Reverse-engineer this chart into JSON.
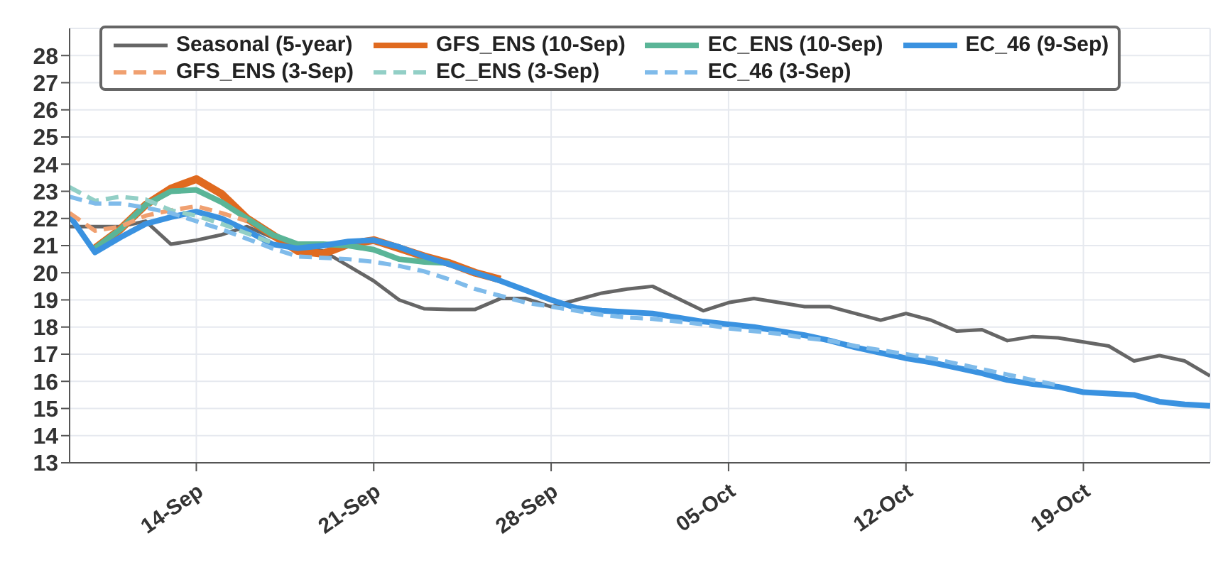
{
  "chart_data": {
    "type": "line",
    "x": [
      "--09-09",
      "--09-10",
      "--09-11",
      "--09-12",
      "--09-13",
      "--09-14",
      "--09-15",
      "--09-16",
      "--09-17",
      "--09-18",
      "--09-19",
      "--09-20",
      "--09-21",
      "--09-22",
      "--09-23",
      "--09-24",
      "--09-25",
      "--09-26",
      "--09-27",
      "--09-28",
      "--09-29",
      "--09-30",
      "--10-01",
      "--10-02",
      "--10-03",
      "--10-04",
      "--10-05",
      "--10-06",
      "--10-07",
      "--10-08",
      "--10-09",
      "--10-10",
      "--10-11",
      "--10-12",
      "--10-13",
      "--10-14",
      "--10-15",
      "--10-16",
      "--10-17",
      "--10-18",
      "--10-19",
      "--10-20",
      "--10-21",
      "--10-22",
      "--10-23",
      "--10-24"
    ],
    "series": [
      {
        "name": "Seasonal (5-year)",
        "color": "#666666",
        "line_style": "solid",
        "values": [
          21.7,
          21.7,
          21.7,
          21.9,
          21.05,
          21.2,
          21.4,
          21.7,
          21.3,
          21.0,
          20.8,
          20.25,
          19.7,
          19.0,
          18.67,
          18.65,
          18.65,
          19.05,
          19.05,
          18.75,
          19.0,
          19.25,
          19.4,
          19.5,
          19.05,
          18.6,
          18.9,
          19.05,
          18.9,
          18.75,
          18.75,
          18.5,
          18.25,
          18.5,
          18.25,
          17.85,
          17.9,
          17.5,
          17.65,
          17.6,
          17.45,
          17.3,
          16.75,
          16.95,
          16.75,
          16.2
        ]
      },
      {
        "name": "GFS_ENS (10-Sep)",
        "color": "#e06a1f",
        "line_style": "solid",
        "x": [
          "--09-10",
          "--09-11",
          "--09-12",
          "--09-13",
          "--09-14",
          "--09-15",
          "--09-16",
          "--09-17",
          "--09-18",
          "--09-19",
          "--09-20",
          "--09-21",
          "--09-22",
          "--09-23",
          "--09-24",
          "--09-25",
          "--09-26"
        ],
        "values": [
          20.9,
          21.6,
          22.5,
          23.1,
          23.45,
          22.9,
          22.0,
          21.4,
          20.8,
          20.7,
          21.05,
          21.2,
          20.9,
          20.6,
          20.35,
          20.0,
          19.75
        ]
      },
      {
        "name": "EC_ENS (10-Sep)",
        "color": "#5ab597",
        "line_style": "solid",
        "x": [
          "--09-10",
          "--09-11",
          "--09-12",
          "--09-13",
          "--09-14",
          "--09-15",
          "--09-16",
          "--09-17",
          "--09-18",
          "--09-19",
          "--09-20",
          "--09-21",
          "--09-22",
          "--09-23",
          "--09-24"
        ],
        "values": [
          20.9,
          21.6,
          22.5,
          23.0,
          23.05,
          22.6,
          22.0,
          21.4,
          21.05,
          21.05,
          21.0,
          20.85,
          20.5,
          20.4,
          20.35
        ]
      },
      {
        "name": "EC_46 (9-Sep)",
        "color": "#3a92e0",
        "line_style": "solid",
        "values": [
          22.1,
          20.75,
          21.3,
          21.8,
          22.05,
          22.25,
          22.0,
          21.55,
          21.05,
          20.9,
          21.0,
          21.15,
          21.2,
          20.95,
          20.6,
          20.3,
          20.0,
          19.7,
          19.35,
          19.0,
          18.7,
          18.6,
          18.55,
          18.5,
          18.35,
          18.2,
          18.1,
          18.0,
          17.85,
          17.7,
          17.5,
          17.25,
          17.05,
          16.85,
          16.7,
          16.5,
          16.3,
          16.05,
          15.9,
          15.8,
          15.6,
          15.55,
          15.5,
          15.25,
          15.15,
          15.1
        ]
      },
      {
        "name": "GFS_ENS (3-Sep)",
        "color": "#f0a070",
        "line_style": "dashed",
        "x": [
          "--09-09",
          "--09-10",
          "--09-11",
          "--09-12",
          "--09-13",
          "--09-14",
          "--09-15",
          "--09-16"
        ],
        "values": [
          22.2,
          21.55,
          21.7,
          22.1,
          22.3,
          22.45,
          22.2,
          21.9
        ]
      },
      {
        "name": "EC_ENS (3-Sep)",
        "color": "#92cfc6",
        "line_style": "dashed",
        "x": [
          "--09-09",
          "--09-10",
          "--09-11",
          "--09-12",
          "--09-13",
          "--09-14",
          "--09-15",
          "--09-16",
          "--09-17"
        ],
        "values": [
          23.15,
          22.65,
          22.8,
          22.7,
          22.3,
          22.1,
          21.8,
          21.45,
          21.1
        ]
      },
      {
        "name": "EC_46 (3-Sep)",
        "color": "#7fbbea",
        "line_style": "dashed",
        "x": [
          "--09-09",
          "--09-10",
          "--09-11",
          "--09-12",
          "--09-13",
          "--09-14",
          "--09-15",
          "--09-16",
          "--09-17",
          "--09-18",
          "--09-19",
          "--09-20",
          "--09-21",
          "--09-22",
          "--09-23",
          "--09-24",
          "--09-25",
          "--09-26",
          "--09-27",
          "--09-28",
          "--09-29",
          "--09-30",
          "--10-01",
          "--10-02",
          "--10-03",
          "--10-04",
          "--10-05",
          "--10-06",
          "--10-07",
          "--10-08",
          "--10-09",
          "--10-10",
          "--10-11",
          "--10-12",
          "--10-13",
          "--10-14",
          "--10-15",
          "--10-16",
          "--10-17",
          "--10-18"
        ],
        "values": [
          22.8,
          22.55,
          22.55,
          22.4,
          22.2,
          21.9,
          21.6,
          21.25,
          20.9,
          20.6,
          20.55,
          20.5,
          20.4,
          20.25,
          20.05,
          19.75,
          19.4,
          19.15,
          18.9,
          18.75,
          18.6,
          18.45,
          18.35,
          18.3,
          18.2,
          18.1,
          17.95,
          17.85,
          17.75,
          17.6,
          17.5,
          17.3,
          17.15,
          17.0,
          16.85,
          16.65,
          16.45,
          16.25,
          16.05,
          15.85
        ]
      }
    ],
    "xlim": [
      "--09-09",
      "--10-24"
    ],
    "xticks": [
      {
        "value": "--09-14",
        "label": "14-Sep"
      },
      {
        "value": "--09-21",
        "label": "21-Sep"
      },
      {
        "value": "--09-28",
        "label": "28-Sep"
      },
      {
        "value": "--10-05",
        "label": "05-Oct"
      },
      {
        "value": "--10-12",
        "label": "12-Oct"
      },
      {
        "value": "--10-19",
        "label": "19-Oct"
      }
    ],
    "ylim": [
      13,
      29
    ],
    "yticks": [
      13,
      14,
      15,
      16,
      17,
      18,
      19,
      20,
      21,
      22,
      23,
      24,
      25,
      26,
      27,
      28
    ],
    "grid": true,
    "legend": "top",
    "marker": "none"
  }
}
